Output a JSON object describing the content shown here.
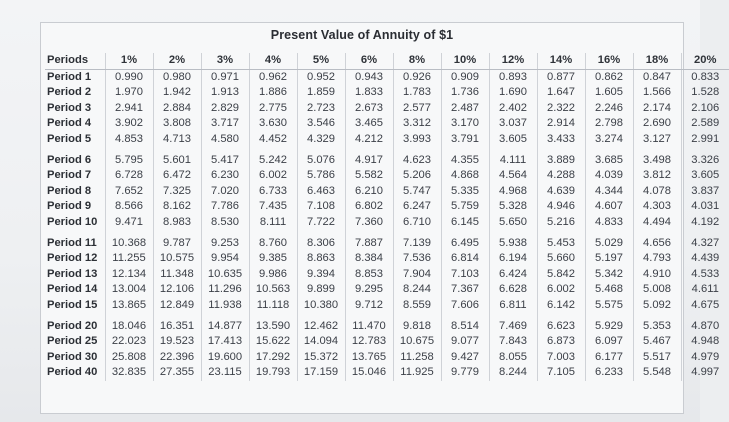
{
  "table": {
    "title": "Present Value of Annuity of $1",
    "columns": [
      "Periods",
      "1%",
      "2%",
      "3%",
      "4%",
      "5%",
      "6%",
      "8%",
      "10%",
      "12%",
      "14%",
      "16%",
      "18%",
      "20%"
    ],
    "groups": [
      [
        {
          "label": "Period 1",
          "values": [
            "0.990",
            "0.980",
            "0.971",
            "0.962",
            "0.952",
            "0.943",
            "0.926",
            "0.909",
            "0.893",
            "0.877",
            "0.862",
            "0.847",
            "0.833"
          ]
        },
        {
          "label": "Period 2",
          "values": [
            "1.970",
            "1.942",
            "1.913",
            "1.886",
            "1.859",
            "1.833",
            "1.783",
            "1.736",
            "1.690",
            "1.647",
            "1.605",
            "1.566",
            "1.528"
          ]
        },
        {
          "label": "Period 3",
          "values": [
            "2.941",
            "2.884",
            "2.829",
            "2.775",
            "2.723",
            "2.673",
            "2.577",
            "2.487",
            "2.402",
            "2.322",
            "2.246",
            "2.174",
            "2.106"
          ]
        },
        {
          "label": "Period 4",
          "values": [
            "3.902",
            "3.808",
            "3.717",
            "3.630",
            "3.546",
            "3.465",
            "3.312",
            "3.170",
            "3.037",
            "2.914",
            "2.798",
            "2.690",
            "2.589"
          ]
        },
        {
          "label": "Period 5",
          "values": [
            "4.853",
            "4.713",
            "4.580",
            "4.452",
            "4.329",
            "4.212",
            "3.993",
            "3.791",
            "3.605",
            "3.433",
            "3.274",
            "3.127",
            "2.991"
          ]
        }
      ],
      [
        {
          "label": "Period 6",
          "values": [
            "5.795",
            "5.601",
            "5.417",
            "5.242",
            "5.076",
            "4.917",
            "4.623",
            "4.355",
            "4.111",
            "3.889",
            "3.685",
            "3.498",
            "3.326"
          ]
        },
        {
          "label": "Period 7",
          "values": [
            "6.728",
            "6.472",
            "6.230",
            "6.002",
            "5.786",
            "5.582",
            "5.206",
            "4.868",
            "4.564",
            "4.288",
            "4.039",
            "3.812",
            "3.605"
          ]
        },
        {
          "label": "Period 8",
          "values": [
            "7.652",
            "7.325",
            "7.020",
            "6.733",
            "6.463",
            "6.210",
            "5.747",
            "5.335",
            "4.968",
            "4.639",
            "4.344",
            "4.078",
            "3.837"
          ]
        },
        {
          "label": "Period 9",
          "values": [
            "8.566",
            "8.162",
            "7.786",
            "7.435",
            "7.108",
            "6.802",
            "6.247",
            "5.759",
            "5.328",
            "4.946",
            "4.607",
            "4.303",
            "4.031"
          ]
        },
        {
          "label": "Period 10",
          "values": [
            "9.471",
            "8.983",
            "8.530",
            "8.111",
            "7.722",
            "7.360",
            "6.710",
            "6.145",
            "5.650",
            "5.216",
            "4.833",
            "4.494",
            "4.192"
          ]
        }
      ],
      [
        {
          "label": "Period 11",
          "values": [
            "10.368",
            "9.787",
            "9.253",
            "8.760",
            "8.306",
            "7.887",
            "7.139",
            "6.495",
            "5.938",
            "5.453",
            "5.029",
            "4.656",
            "4.327"
          ]
        },
        {
          "label": "Period 12",
          "values": [
            "11.255",
            "10.575",
            "9.954",
            "9.385",
            "8.863",
            "8.384",
            "7.536",
            "6.814",
            "6.194",
            "5.660",
            "5.197",
            "4.793",
            "4.439"
          ]
        },
        {
          "label": "Period 13",
          "values": [
            "12.134",
            "11.348",
            "10.635",
            "9.986",
            "9.394",
            "8.853",
            "7.904",
            "7.103",
            "6.424",
            "5.842",
            "5.342",
            "4.910",
            "4.533"
          ]
        },
        {
          "label": "Period 14",
          "values": [
            "13.004",
            "12.106",
            "11.296",
            "10.563",
            "9.899",
            "9.295",
            "8.244",
            "7.367",
            "6.628",
            "6.002",
            "5.468",
            "5.008",
            "4.611"
          ]
        },
        {
          "label": "Period 15",
          "values": [
            "13.865",
            "12.849",
            "11.938",
            "11.118",
            "10.380",
            "9.712",
            "8.559",
            "7.606",
            "6.811",
            "6.142",
            "5.575",
            "5.092",
            "4.675"
          ]
        }
      ],
      [
        {
          "label": "Period 20",
          "values": [
            "18.046",
            "16.351",
            "14.877",
            "13.590",
            "12.462",
            "11.470",
            "9.818",
            "8.514",
            "7.469",
            "6.623",
            "5.929",
            "5.353",
            "4.870"
          ]
        },
        {
          "label": "Period 25",
          "values": [
            "22.023",
            "19.523",
            "17.413",
            "15.622",
            "14.094",
            "12.783",
            "10.675",
            "9.077",
            "7.843",
            "6.873",
            "6.097",
            "5.467",
            "4.948"
          ]
        },
        {
          "label": "Period 30",
          "values": [
            "25.808",
            "22.396",
            "19.600",
            "17.292",
            "15.372",
            "13.765",
            "11.258",
            "9.427",
            "8.055",
            "7.003",
            "6.177",
            "5.517",
            "4.979"
          ]
        },
        {
          "label": "Period 40",
          "values": [
            "32.835",
            "27.355",
            "23.115",
            "19.793",
            "17.159",
            "15.046",
            "11.925",
            "9.779",
            "8.244",
            "7.105",
            "6.233",
            "5.548",
            "4.997"
          ]
        }
      ]
    ]
  }
}
